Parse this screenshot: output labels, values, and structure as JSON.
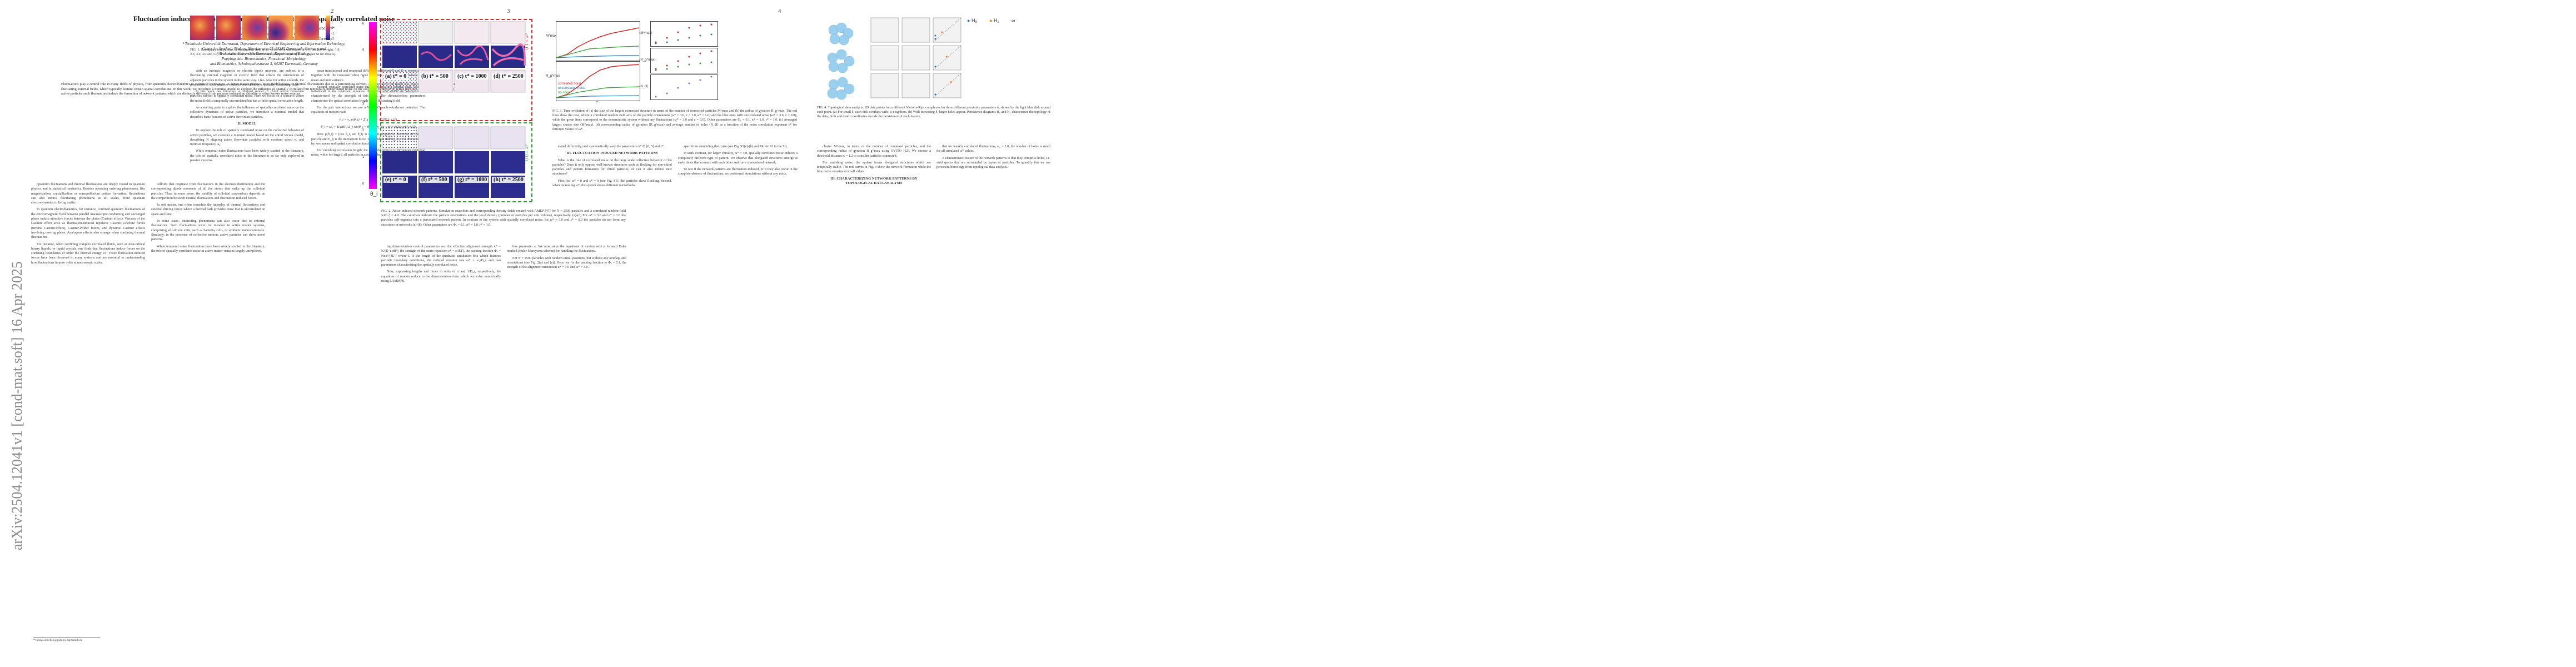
{
  "arxiv_stamp": "arXiv:2504.12041v1  [cond-mat.soft]  16 Apr 2025",
  "page_numbers": [
    "2",
    "3",
    "4"
  ],
  "page1": {
    "title": "Fluctuation induced network patterns in active matter with spatially correlated noise",
    "authors": "Sebastian Fehlinger¹, Kai Cui², Arooj Sajjad³, Heinz Koeppl², and Benno Liebchen¹*",
    "affiliations": [
      "¹ Technische Universität Darmstadt, Department of Physics,",
      "Institute of Condensed Matter Physics, Hochschulstraße 8, 64289 Darmstadt, Germany",
      "² Technische Universität Darmstadt, Department of Electrical Engineering and Information Technology,",
      "Centre for Synthetic Biology, Merckstrasse 25, 64283 Darmstadt, Germany and",
      "³ Technische Universität Darmstadt, Department of Biology,",
      "Poppings lab: Biomechanics, Functional Morphology,",
      "and Biomimetics, Schnittspahnstrasse 3, 64287 Darmstadt, Germany"
    ],
    "abstract": "Fluctuations play a central role in many fields of physics, from quantum electrodynamics to statistical mechanics. In active matter physics, most models focus on thermal fluctuations due to a surrounding solvent. An alternative but much less explored noise source can occur due to fluctuating external fields, which typically feature certain spatial correlations. In this work, we introduce a minimal model to explore the influence of spatially correlated but temporally uncorrelated noise on the collective behavior of active particles. We find that specifically in chiral active particles such fluctuations induce the formation of network patterns which are distinctly different from patterns induced by chirality or other known noise sources.",
    "footnote": "* benno.liebchen@pkm.tu-darmstadt.de",
    "col_left": [
      "Quantum fluctuations and thermal fluctuations are deeply rooted in quantum physics and in statistical mechanics. Besides operating ordering phenomena, like magnetization, crystallization or nonequilibrium pattern formation, fluctuations can also induce fascinating phenomena at all scales, from quantum electrodynamics to living matter.",
      "In quantum electrodynamics, for instance, confined quantum fluctuations of the electromagnetic field between parallel macroscopic conducting and uncharged plates induce attractive forces between the plates (Casimir effect). Variants of the Casimir effect arise as fluctuation-induced repulsive Casimir-Lifschitz forces (inverse Casimir-effect), Casimir-Polder forces, and dynamic Casimir effects involving moving plates. Analogous effects also emerge when confining thermal fluctuations.",
      "For instance, when confining complex correlated fluids, such as near-critical binary liquids, or liquid crystals, one finds that fluctuations induce forces on the confining boundaries of order the thermal energy kT. These fluctuation-induced forces have been observed in many systems and are essential to understanding how fluctuations impose order at mesoscopic scales."
    ],
    "col_right": [
      "colloids that originate from fluctuations in the electron distribution and the corresponding dipole moments of all the atoms that make up the colloidal particles. Thus, in some sense, the stability of colloidal suspensions depends on the competition between thermal fluctuations and fluctuation-induced forces.",
      "In soft matter, one often considers the interplay of thermal fluctuations and external driving forces where a thermal bath provides noise that is uncorrelated in space and time.",
      "In some cases, interesting phenomena can also occur due to external fluctuations. Such fluctuations occur for instance in active matter systems, comprising self-driven units, such as bacteria, cells, or synthetic microswimmers. Similarly, in the presence of collective motion, active particles can show novel patterns.",
      "While temporal noise fluctuations have been widely studied in the literature, the role of spatially correlated noise in active matter remains largely unexplored."
    ]
  },
  "page2": {
    "fig1_caption": "FIG. 1. Exemplary realizations of the random field η_i(r^t) for different values of ξ (from left to right: 1.0, 2.0, 3.0, 4.0 and 5.0) in a simulation box of size 100×100 in units of the particle size σ (see SI for details).",
    "colorbar_ticks": [
      "2",
      "1",
      "0",
      "-1",
      "-2"
    ],
    "colorbar_label": "η_i(r^t)",
    "col_left": [
      "with an intrinsic magnetic or electric dipole moment, are subject to a fluctuating external magnetic or electric field that affects the orientations of adjacent particles in the system in the same way. Like- wise for active colloids, the propulsion of such particles could be controlled by a spatially fluctuating field.",
      "In this work, we introduce a minimal model of chiral active Brownian particles subject to spatially correlated noise. Here we focus on a scenario where the noise field is temporally uncorrelated but has a finite spatial correlation length.",
      "As a starting point to explore the influence of spatially correlated noise on the collective dynamics of active particles, we introduce a minimal model that describes basic features of active Brownian particles."
    ],
    "section_model": "II.   MODEL",
    "model_text": [
      "To explore the role of spatially correlated noise on the collective behavior of active particles, we consider a minimal model based on the chiral Vicsek model, describing N aligning active Brownian particles with constant speed v₀ and intrinsic frequency ω₀.",
      "While temporal noise fluctuations have been widely studied in the literature, the role of spatially correlated noise in the literature is so far only explored in passive systems."
    ],
    "col_right": [
      "mean translational and rotational diffusion coefficient D and D_r, respectively, together with the Gaussian white noise variables ξ_i and ζ_i which have zero mean and unit variance.",
      "Second, spatially correlated noise due to a fluctuating external field, which is introduced in the rotational equation of motion and which we assume to be characterized by the strength of this field. The dimensionless parameters characterize the spatial correlation length of the fluctuating field.",
      "For the pair interactions we use a Weeks-Chandler-Andersen potential. The equations of motion read:"
    ],
    "equations": [
      "ṙ_i = v₀ p(θ_i) + Σ_j F_ij + √(2D) ξ_i        (1)",
      "θ̇_i = ω₀ + K/(πR²) Σ_j sin(θ_j − θ_i) + η_i(r_i, t) + √(2D_r) ζ_i        (2)"
    ],
    "after_eq": [
      "Here p(θ_i) = (cos θ_i, sin θ_i) is the self-propulsion direction of the i-th particle and F_ij is the interaction force. The random field η_i(r, t) is characterized by zero mean and spatial correlation function.",
      "For vanishing correlation length, the η_i field reduces to Brownian rotational noise, while for large ξ all particles in a region share the same noise."
    ]
  },
  "page3": {
    "fig2_caption": "FIG. 2. Noise induced network patterns. Simulation snapshots and corresponding density fields created with AMEP [47] for N = 2500 particles and a correlated random field with ξ = 4.0. The colorbars indicate the particle orientations and the local density (number of particles per unit volume), respectively. (a)-(d) For ω* = 3.0 and ε* = 1.0 the particles self-organize into a percolated network pattern. In contrast to the system with spatially correlated noise, for ω* = 3.0 and ε* = 0.0 the particles do not form any structures or networks (e)-(h). Other parameters are Φ₀ = 0.1, κ* = 1.0, r* = 1.0.",
    "colorbar_ticks": [
      "6",
      "5",
      "4",
      "3",
      "2",
      "1",
      "0"
    ],
    "colorbar_label": "θ_i",
    "frame_labels": [
      "ε* = 1.0",
      "ε* = 0.0"
    ],
    "panels": [
      "(a) t* = 0",
      "(b) t* = 500",
      "(c) t* = 1000",
      "(d) t* = 2500",
      "(e) t* = 0",
      "(f) t* = 500",
      "(g) t* = 1000",
      "(h) t* = 2500"
    ],
    "col_left": [
      "ing dimensionless control parameters are: the effective alignment strength κ* = K/(D_r πR²), the strength of the steric repulsion ε* = ε/(kT), the packing fraction Φ₀ = Nπσ²/(4L²) where L is the length of the quadratic simulation box which features periodic boundary conditions, the reduced rotation rate ω* = ω₀/D_r and two parameters characterizing the spatially correlated noise.",
      "Now, expressing lengths and times in units of σ and 1/D_r, respectively, the equations of motion reduce to the dimensionless form which we solve numerically using LAMMPS."
    ],
    "col_right": [
      "less parameter κ. We now solve the equations of motion with a forward Euler method (Euler-Maruyama scheme) for handling the fluctuations.",
      "For N = 2500 particles with random initial positions, but without any overlap, and orientations (see Fig. 2(a) and (e)). Here, we fix the packing fraction to Φ₀ = 0.1, the strength of the alignment interaction κ* = 1.0 and ω* = 3.0."
    ]
  },
  "page4": {
    "fig3_caption": "FIG. 3. Time evolution of (a) the size of the largest connected structure in terms of the number of connected particles M^max and (b) the radius of gyration R_g^max. The red lines show the case, where a correlated random field acts on the particle orientations (ω* = 3.0, ε = 1.0, κ* = 1.0) and the blue ones with uncorrelated noise (ω* = 3.0, ε = 0.0), while the green lines correspond to the deterministic system without any fluctuations (ω* = 3.0 and ε = 0.0). Other parameters are Φ₀ = 0.1, κ* = 1.0, r* = 1.0. (c) Averaged largest cluster size ⟨M^max⟩, (d) corresponding radius of gyration ⟨R_g^max⟩ and average number of holes ⟨N_H⟩ as a function of the noise correlation exponent ε* for different values of ω*.",
    "legend": [
      "correlated noise",
      "uncorrelated noise",
      "no noise"
    ],
    "axis_a": "M^max",
    "axis_b": "R_g^max",
    "axis_c": "⟨M^max⟩",
    "axis_d": "⟨R_g^max⟩",
    "axis_e": "⟨N_H⟩",
    "xlabel": "t*",
    "col_left": [
      "stated differently) and systematically vary the parameters ω* ∈ [0, 5] and ε*.",
      "What is the role of correlated noise on the large scale collective behavior of the particles? Does it only oppose well-known structures such as flocking for non-chiral particles and pattern formation for chiral particles, or can it also induce new structures?",
      "First, for ω* = 0 and ε* = 0 (see Fig. S1), the particles show flocking. Second, when increasing ω*, the system shows different microflocks."
    ],
    "section": "III.   FLUCTUATION INDUCED NETWORK PATTERNS",
    "col_right": [
      "apart from coinciding their size (see Fig. S1(e)-(h) and Movie S3 in the SI).",
      "In stark contrast, for larger chirality, ω* = 3.0, spatially correlated noise induces a completely different type of pattern. We observe that elongated structures emerge at early times that connect with each other and form a percolated network.",
      "To test if the network-patterns are fluctuation-induced, or if they also occur in the complete absence of fluctuations, we performed simulations without any noise."
    ]
  },
  "page5": {
    "fig4_caption": "FIG. 4. Topological data analysis. 2D data points form different Vietoris-Rips complexes for three different proximity parameters δ, shown by the light blue disk around each point. (a) For small δ, each disk overlaps with its neighbors. (b) With increasing δ, larger holes appear. Persistence diagrams H₀ and H₁ characterize the topology of the data; birth and death coordinates encode the persistence of each feature.",
    "legend": [
      "H₀",
      "H₁",
      "∞"
    ],
    "legend_colors": [
      "#1f77b4",
      "#ff7f0e",
      "#444444"
    ],
    "col_left": [
      "cluster M^max, in terms of the number of contained particles, and the corresponding radius of gyration R_g^max using OVITO [62]. We choose a threshold distance rₜ = 1.2 to consider particles connected.",
      "For vanishing noise, the system forms elongated structures which are temporally stable. The red curves in Fig. 3 show the network formation while the blue curve remains at small values."
    ],
    "section": "III.   CHARACTERIZING NETWORK PATTERNS BY TOPOLOGICAL DATA ANALYSIS",
    "col_right": [
      "that for weakly correlated fluctuations, ω₀ = 2.0, the number of holes is small for all simulated ω* values.",
      "A characteristic feature of the network patterns is that they comprise holes, i.e. void spaces that are surrounded by layers of particles. To quantify this we use persistent homology from topological data analysis."
    ]
  }
}
